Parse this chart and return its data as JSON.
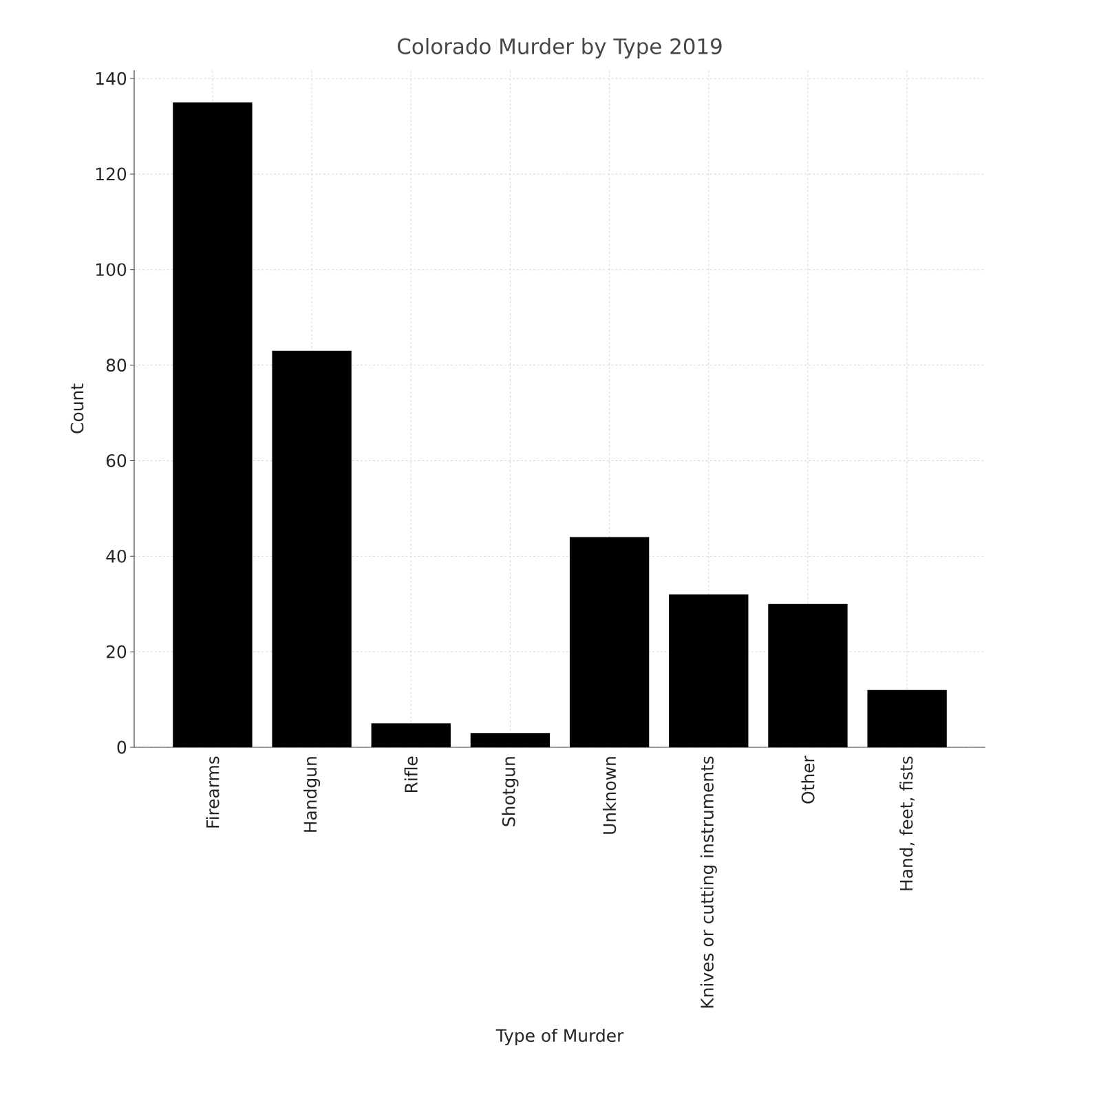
{
  "chart_data": {
    "type": "bar",
    "title": "Colorado Murder by Type 2019",
    "xlabel": "Type of Murder",
    "ylabel": "Count",
    "categories": [
      "Firearms",
      "Handgun",
      "Rifle",
      "Shotgun",
      "Unknown",
      "Knives or cutting instruments",
      "Other",
      "Hand, feet, fists"
    ],
    "values": [
      135,
      83,
      5,
      3,
      44,
      32,
      30,
      12
    ],
    "color": "#000000",
    "ylim": [
      0,
      141.75
    ],
    "yticks": [
      0,
      20,
      40,
      60,
      80,
      100,
      120,
      140
    ],
    "grid": true
  }
}
